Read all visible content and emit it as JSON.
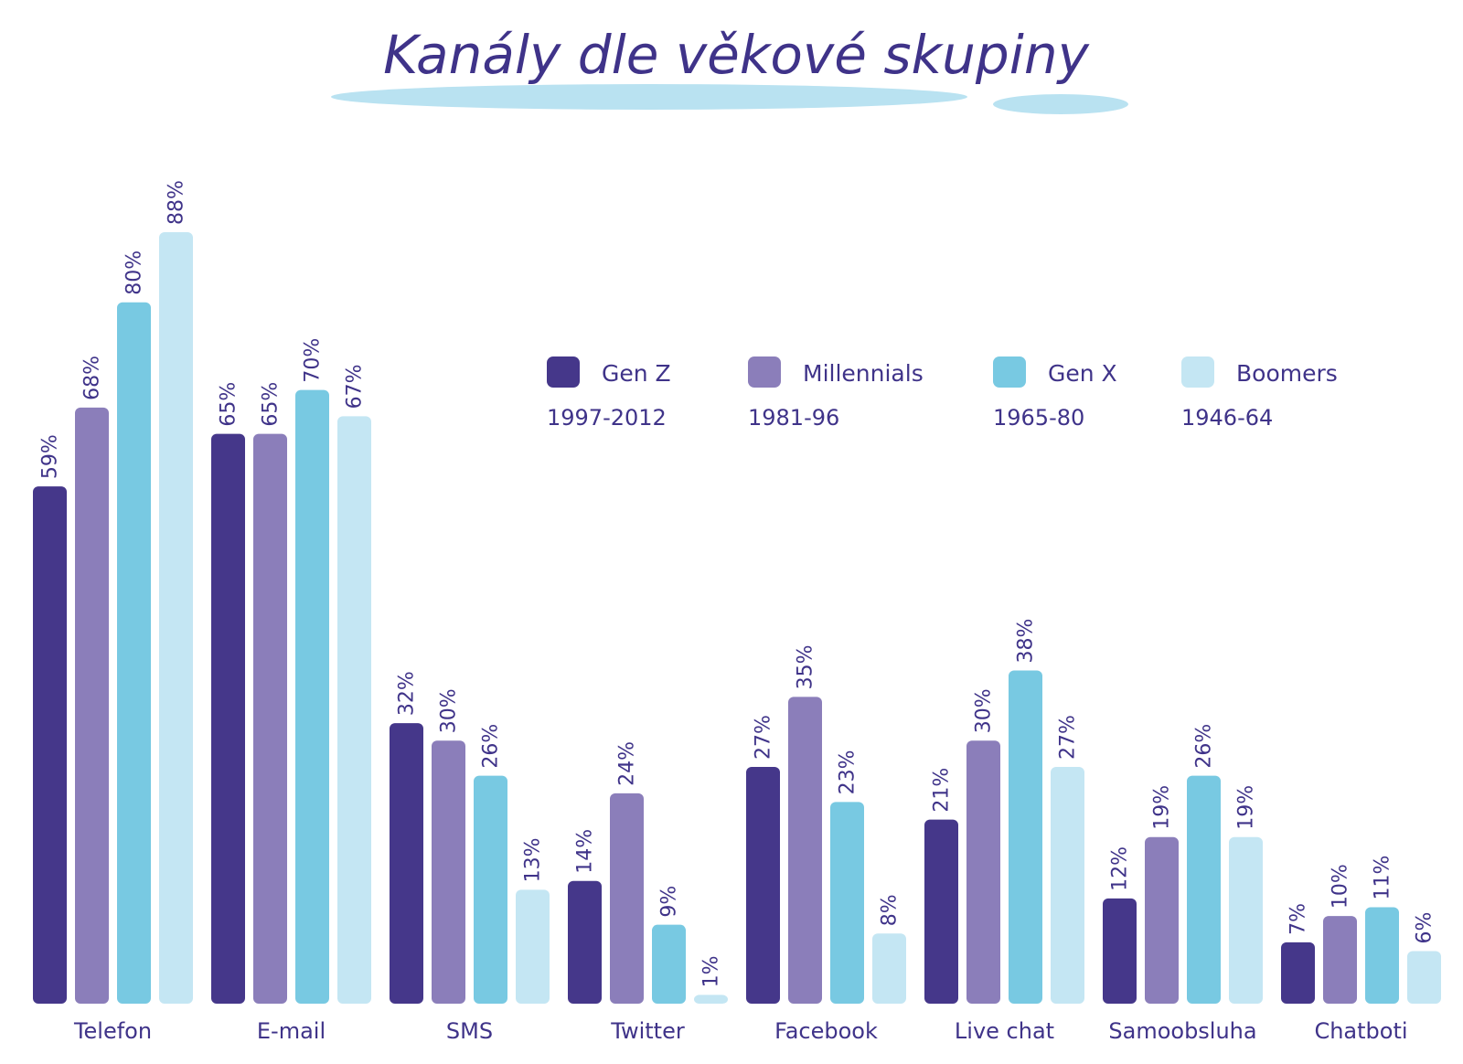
{
  "chart_data": {
    "type": "bar",
    "title": "Kanály dle věkové skupiny",
    "categories": [
      "Telefon",
      "E-mail",
      "SMS",
      "Twitter",
      "Facebook",
      "Live chat",
      "Samoobsluha",
      "Chatboti"
    ],
    "series": [
      {
        "name": "Gen Z",
        "years": "1997-2012",
        "color": "#45378a",
        "values": [
          59,
          65,
          32,
          14,
          27,
          21,
          12,
          7
        ]
      },
      {
        "name": "Millennials",
        "years": "1981-96",
        "color": "#8b7eba",
        "values": [
          68,
          65,
          30,
          24,
          35,
          30,
          19,
          10
        ]
      },
      {
        "name": "Gen X",
        "years": "1965-80",
        "color": "#78c9e2",
        "values": [
          80,
          70,
          26,
          9,
          23,
          38,
          26,
          11
        ]
      },
      {
        "name": "Boomers",
        "years": "1946-64",
        "color": "#c4e6f3",
        "values": [
          88,
          67,
          13,
          1,
          8,
          27,
          19,
          6
        ]
      }
    ],
    "ylim": [
      0,
      100
    ],
    "grid": false,
    "legend": "top-right",
    "value_suffix": "%"
  },
  "colors": {
    "title": "#3f3389",
    "title_underline": "#b9e2f1"
  }
}
